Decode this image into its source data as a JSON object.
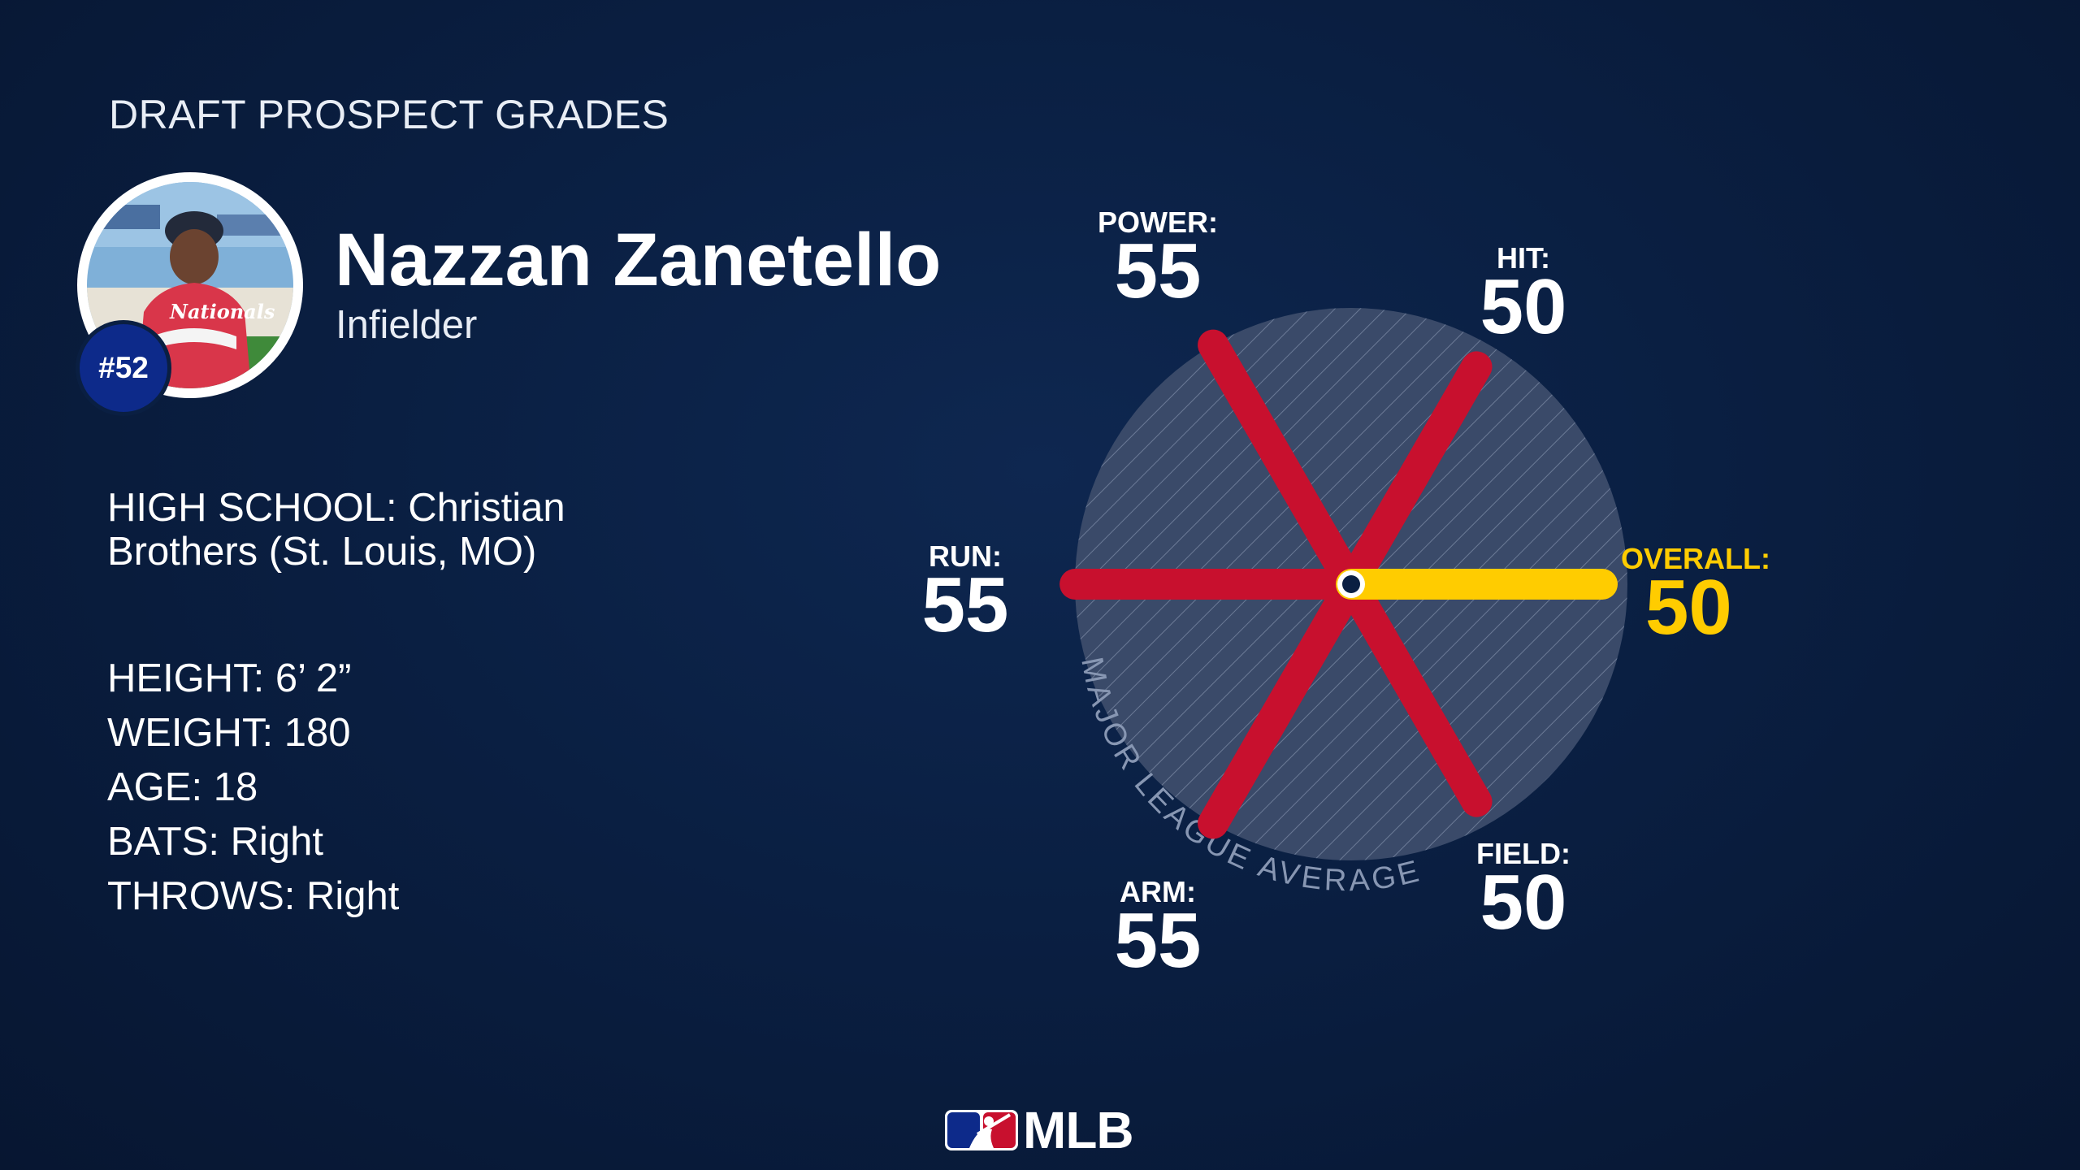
{
  "header": {
    "title": "DRAFT PROSPECT GRADES"
  },
  "player": {
    "rank_badge": "#52",
    "name": "Nazzan Zanetello",
    "position": "Infielder",
    "avatar_icon": "player-photo",
    "jersey_text": "Nationals"
  },
  "bio": {
    "high_school": "HIGH SCHOOL: Christian Brothers (St. Louis, MO)",
    "height": "HEIGHT: 6’ 2”",
    "weight": "WEIGHT: 180",
    "age": "AGE: 18",
    "bats": "BATS: Right",
    "throws": "THROWS: Right"
  },
  "chart_data": {
    "type": "radial",
    "scale": "20-80 scouting grade",
    "reference_label": "MAJOR LEAGUE AVERAGE",
    "reference_value": 50,
    "spokes": [
      {
        "label": "POWER:",
        "value": 55,
        "color": "#c8102e"
      },
      {
        "label": "HIT:",
        "value": 50,
        "color": "#c8102e"
      },
      {
        "label": "OVERALL:",
        "value": 50,
        "color": "#ffcc00"
      },
      {
        "label": "FIELD:",
        "value": 50,
        "color": "#c8102e"
      },
      {
        "label": "ARM:",
        "value": 55,
        "color": "#c8102e"
      },
      {
        "label": "RUN:",
        "value": 55,
        "color": "#c8102e"
      }
    ],
    "colors": {
      "tool": "#c8102e",
      "overall": "#ffcc00",
      "disc": "#3c4c6b"
    }
  },
  "footer": {
    "logo_text": "MLB",
    "logo_icon": "mlb-batter-icon"
  }
}
